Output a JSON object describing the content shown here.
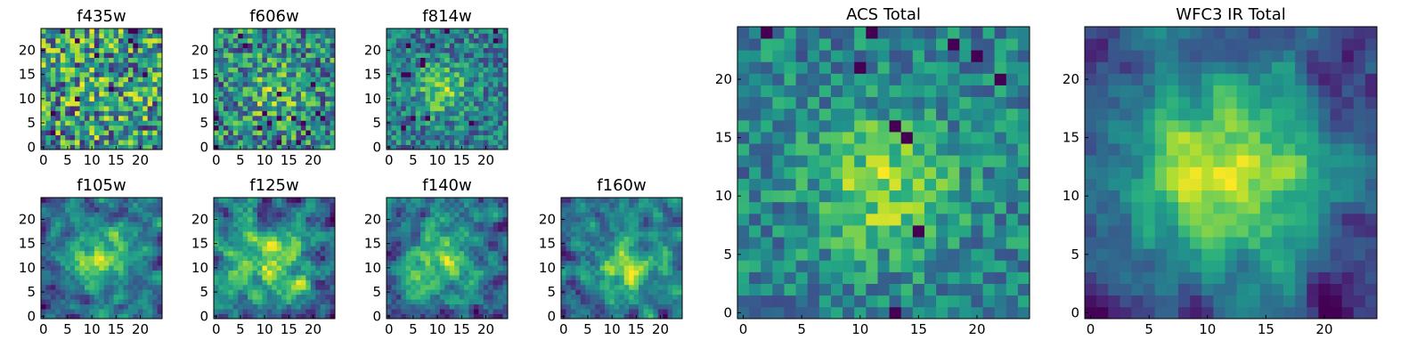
{
  "figure": {
    "grid_size": 25,
    "colormap": "viridis"
  },
  "chart_data": [
    {
      "type": "heatmap",
      "title": "f435w",
      "style": "noise",
      "peak": [
        12,
        12
      ],
      "spread": 5,
      "strength": 0.05,
      "noise": 0.26,
      "seed": 11,
      "xticks": [
        0,
        5,
        10,
        15,
        20
      ],
      "yticks": [
        0,
        5,
        10,
        15,
        20
      ],
      "xlim": [
        0,
        24
      ],
      "ylim": [
        0,
        24
      ]
    },
    {
      "type": "heatmap",
      "title": "f606w",
      "style": "noise",
      "peak": [
        12,
        11
      ],
      "spread": 4,
      "strength": 0.25,
      "noise": 0.24,
      "seed": 23,
      "xticks": [
        0,
        5,
        10,
        15,
        20
      ],
      "yticks": [
        0,
        5,
        10,
        15,
        20
      ],
      "xlim": [
        0,
        24
      ],
      "ylim": [
        0,
        24
      ]
    },
    {
      "type": "heatmap",
      "title": "f814w",
      "style": "noise",
      "peak": [
        11,
        12
      ],
      "spread": 3.5,
      "strength": 0.45,
      "noise": 0.2,
      "seed": 37,
      "xticks": [
        0,
        5,
        10,
        15,
        20
      ],
      "yticks": [
        0,
        5,
        10,
        15,
        20
      ],
      "xlim": [
        0,
        24
      ],
      "ylim": [
        0,
        24
      ]
    },
    {
      "type": "heatmap",
      "title": "f105w",
      "style": "smooth",
      "peak": [
        12,
        12
      ],
      "spread": 5,
      "strength": 0.55,
      "noise": 0.17,
      "seed": 41,
      "xticks": [
        0,
        5,
        10,
        15,
        20
      ],
      "yticks": [
        0,
        5,
        10,
        15,
        20
      ],
      "xlim": [
        0,
        24
      ],
      "ylim": [
        0,
        24
      ]
    },
    {
      "type": "heatmap",
      "title": "f125w",
      "style": "smooth",
      "peak": [
        12,
        11
      ],
      "spread": 5,
      "strength": 0.45,
      "noise": 0.2,
      "seed": 53,
      "xticks": [
        0,
        5,
        10,
        15,
        20
      ],
      "yticks": [
        0,
        5,
        10,
        15,
        20
      ],
      "xlim": [
        0,
        24
      ],
      "ylim": [
        0,
        24
      ]
    },
    {
      "type": "heatmap",
      "title": "f140w",
      "style": "smooth",
      "peak": [
        10,
        12
      ],
      "spread": 5.5,
      "strength": 0.5,
      "noise": 0.18,
      "seed": 67,
      "xticks": [
        0,
        5,
        10,
        15,
        20
      ],
      "yticks": [
        0,
        5,
        10,
        15,
        20
      ],
      "xlim": [
        0,
        24
      ],
      "ylim": [
        0,
        24
      ]
    },
    {
      "type": "heatmap",
      "title": "f160w",
      "style": "smooth",
      "peak": [
        13,
        10
      ],
      "spread": 4.5,
      "strength": 0.55,
      "noise": 0.18,
      "seed": 79,
      "xticks": [
        0,
        5,
        10,
        15,
        20
      ],
      "yticks": [
        0,
        5,
        10,
        15,
        20
      ],
      "xlim": [
        0,
        24
      ],
      "ylim": [
        0,
        24
      ]
    },
    {
      "type": "heatmap",
      "title": "ACS Total",
      "style": "noise",
      "peak": [
        12,
        11
      ],
      "spread": 4,
      "strength": 0.45,
      "noise": 0.16,
      "seed": 97,
      "xticks": [
        0,
        5,
        10,
        15,
        20
      ],
      "yticks": [
        0,
        5,
        10,
        15,
        20
      ],
      "xlim": [
        0,
        24
      ],
      "ylim": [
        0,
        24
      ]
    },
    {
      "type": "heatmap",
      "title": "WFC3 IR Total",
      "style": "smooth",
      "peak": [
        12,
        12
      ],
      "spread": 6.5,
      "strength": 0.7,
      "noise": 0.1,
      "seed": 131,
      "xticks": [
        0,
        5,
        10,
        15,
        20
      ],
      "yticks": [
        0,
        5,
        10,
        15,
        20
      ],
      "xlim": [
        0,
        24
      ],
      "ylim": [
        0,
        24
      ]
    }
  ]
}
